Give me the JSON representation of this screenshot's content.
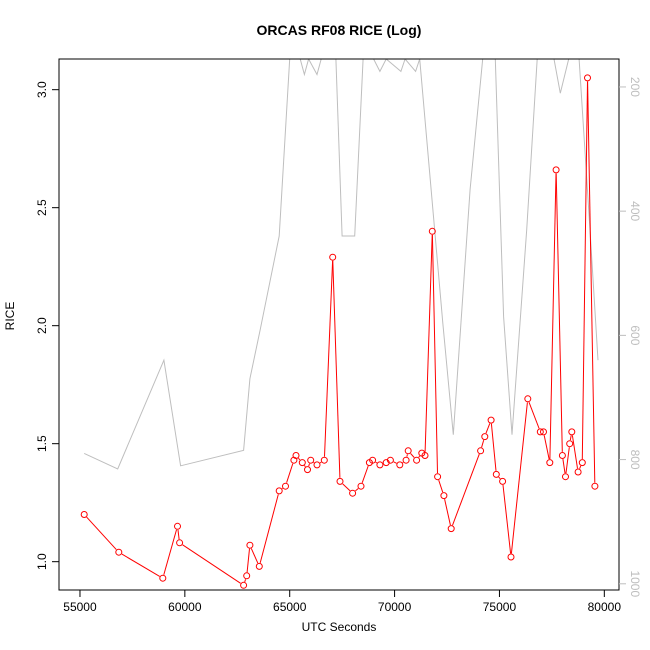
{
  "chart_data": {
    "type": "line",
    "title": "ORCAS RF08 RICE (Log)",
    "xlabel": "UTC Seconds",
    "ylabel": "RICE",
    "xlim": [
      54000,
      80700
    ],
    "ylim": [
      0.88,
      3.13
    ],
    "x_ticks": [
      55000,
      60000,
      65000,
      70000,
      75000,
      80000
    ],
    "y_ticks": [
      1.0,
      1.5,
      2.0,
      2.5,
      3.0
    ],
    "y_tick_labels": [
      "1.0",
      "1.5",
      "2.0",
      "2.5",
      "3.0"
    ],
    "y2_lim": [
      1010,
      155
    ],
    "y2_ticks": [
      200,
      400,
      600,
      800,
      1000
    ],
    "colors": {
      "rice": "#ff0000",
      "secondary": "#bebebe",
      "axis": "#000000"
    },
    "series": [
      {
        "color": "#ff0000",
        "marker": "open-circle",
        "axis": "left",
        "x": [
          55200,
          56850,
          58950,
          59650,
          59750,
          62800,
          62950,
          63100,
          63550,
          64500,
          64800,
          65200,
          65300,
          65600,
          65850,
          66000,
          66300,
          66650,
          67050,
          67400,
          68000,
          68400,
          68800,
          68950,
          69300,
          69600,
          69800,
          70250,
          70550,
          70650,
          71050,
          71300,
          71450,
          71800,
          72050,
          72350,
          72700,
          74100,
          74300,
          74600,
          74850,
          75150,
          75550,
          76350,
          76950,
          77100,
          77400,
          77700,
          78000,
          78150,
          78350,
          78450,
          78750,
          78950,
          79200,
          79550
        ],
        "y": [
          1.2,
          1.04,
          0.93,
          1.15,
          1.08,
          0.9,
          0.94,
          1.07,
          0.98,
          1.3,
          1.32,
          1.43,
          1.45,
          1.42,
          1.39,
          1.43,
          1.41,
          1.43,
          2.29,
          1.34,
          1.29,
          1.32,
          1.42,
          1.43,
          1.41,
          1.42,
          1.43,
          1.41,
          1.43,
          1.47,
          1.43,
          1.46,
          1.45,
          2.4,
          1.36,
          1.28,
          1.14,
          1.47,
          1.53,
          1.6,
          1.37,
          1.34,
          1.02,
          1.69,
          1.55,
          1.55,
          1.42,
          2.66,
          1.45,
          1.36,
          1.5,
          1.55,
          1.38,
          1.42,
          3.05,
          1.32
        ]
      },
      {
        "color": "#bebebe",
        "marker": "none",
        "axis": "right",
        "x": [
          55200,
          56800,
          59000,
          59800,
          62800,
          63100,
          63600,
          64500,
          65000,
          65200,
          65500,
          65700,
          65900,
          66300,
          66500,
          66700,
          67200,
          67500,
          68100,
          68500,
          69000,
          69300,
          69600,
          70300,
          70500,
          71000,
          71200,
          72300,
          72800,
          73600,
          74200,
          74800,
          75200,
          75600,
          76300,
          76800,
          77200,
          77600,
          77900,
          78300,
          78800,
          79300,
          79700
        ],
        "y": [
          790,
          815,
          640,
          810,
          785,
          670,
          590,
          440,
          155,
          155,
          155,
          180,
          155,
          180,
          155,
          155,
          155,
          440,
          440,
          155,
          155,
          175,
          155,
          175,
          155,
          175,
          155,
          580,
          760,
          365,
          155,
          155,
          570,
          760,
          430,
          155,
          155,
          155,
          210,
          155,
          155,
          420,
          640
        ]
      }
    ]
  }
}
